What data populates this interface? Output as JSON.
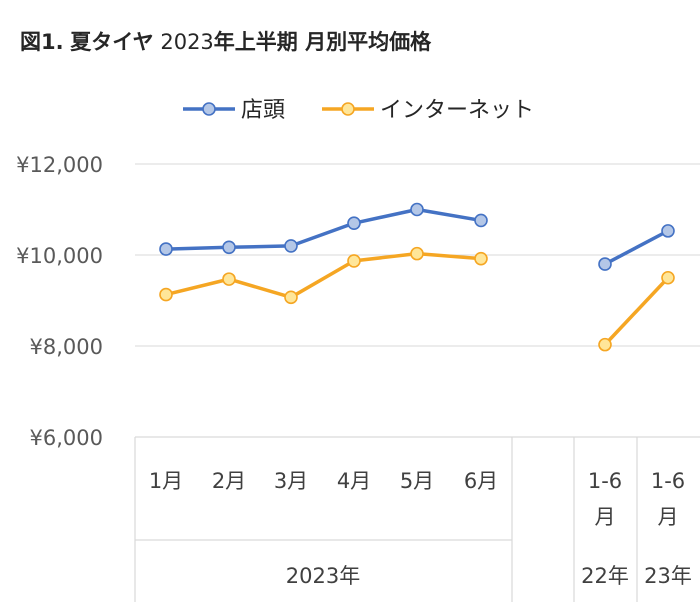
{
  "title": {
    "prefix": "図1.",
    "bold1": "夏タイヤ",
    "year": "2023",
    "bold2": "年上半期 月別平均価格"
  },
  "chart_data": {
    "type": "line",
    "ylim": [
      6000,
      12000
    ],
    "yticks": [
      {
        "value": 12000,
        "label": "¥12,000"
      },
      {
        "value": 10000,
        "label": "¥10,000"
      },
      {
        "value": 8000,
        "label": "¥8,000"
      },
      {
        "value": 6000,
        "label": "¥6,000"
      }
    ],
    "categories": [
      "1月",
      "2月",
      "3月",
      "4月",
      "5月",
      "6月",
      "",
      "1-6\n月",
      "1-6\n月"
    ],
    "group_labels": [
      "2023年",
      "22年",
      "23年"
    ],
    "legend_position": "top",
    "series": [
      {
        "name": "店頭",
        "color": "#4472C4",
        "marker_fill": "#B4C7E7",
        "values": [
          10130,
          10170,
          10200,
          10700,
          11000,
          10760,
          null,
          9800,
          10530
        ]
      },
      {
        "name": "インターネット",
        "color": "#F5A623",
        "marker_fill": "#FFE699",
        "values": [
          9130,
          9470,
          9070,
          9870,
          10030,
          9920,
          null,
          8030,
          9500
        ]
      }
    ]
  }
}
